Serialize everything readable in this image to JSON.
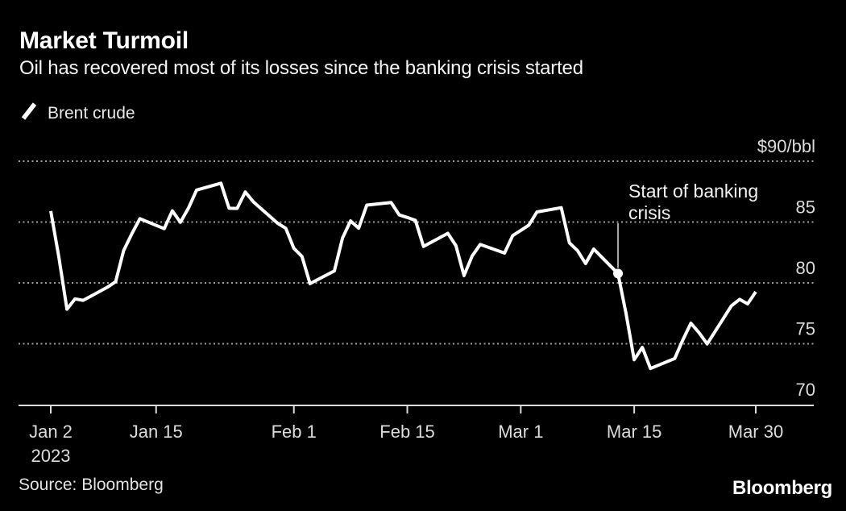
{
  "header": {
    "title": "Market Turmoil",
    "subtitle": "Oil has recovered most of its losses since the banking crisis started"
  },
  "legend": {
    "swatch_icon": "diagonal-line-sample-icon",
    "label": "Brent crude"
  },
  "footer": {
    "source": "Source: Bloomberg",
    "logo": "Bloomberg"
  },
  "colors": {
    "background": "#000000",
    "line": "#ffffff",
    "grid": "#9e9e9e",
    "axis": "#dcdcdc",
    "tick_label": "#dcdcdc",
    "annotation_text": "#f2f2f2",
    "annotation_line": "#cfcfcf",
    "marker": "#ffffff"
  },
  "chart_data": {
    "type": "line",
    "title": "Market Turmoil",
    "subtitle": "Oil has recovered most of its losses since the banking crisis started",
    "ylabel_unit": "$90/bbl",
    "y_domain": [
      70,
      90
    ],
    "grid": "horizontal-dotted",
    "legend_position": "top-left",
    "y_ticks": [
      {
        "label": "$90/bbl",
        "value": 90
      },
      {
        "label": "85",
        "value": 85
      },
      {
        "label": "80",
        "value": 80
      },
      {
        "label": "75",
        "value": 75
      },
      {
        "label": "70",
        "value": 70
      }
    ],
    "x_domain_days": [
      0,
      87
    ],
    "x_ticks": [
      {
        "label": "Jan 2",
        "sublabel": "2023",
        "day": 0
      },
      {
        "label": "Jan 15",
        "day": 13
      },
      {
        "label": "Feb 1",
        "day": 30
      },
      {
        "label": "Feb 15",
        "day": 44
      },
      {
        "label": "Mar 1",
        "day": 58
      },
      {
        "label": "Mar 15",
        "day": 72
      },
      {
        "label": "Mar 30",
        "day": 87
      }
    ],
    "points_format": [
      "date",
      "day_offset",
      "price_usd_per_bbl"
    ],
    "series": [
      {
        "name": "Brent crude",
        "points": [
          [
            "Jan 2",
            0,
            85.91
          ],
          [
            "Jan 3",
            1,
            82.1
          ],
          [
            "Jan 4",
            2,
            77.84
          ],
          [
            "Jan 5",
            3,
            78.69
          ],
          [
            "Jan 6",
            4,
            78.57
          ],
          [
            "Jan 9",
            7,
            79.65
          ],
          [
            "Jan 10",
            8,
            80.1
          ],
          [
            "Jan 11",
            9,
            82.67
          ],
          [
            "Jan 12",
            10,
            84.03
          ],
          [
            "Jan 13",
            11,
            85.28
          ],
          [
            "Jan 16",
            14,
            84.46
          ],
          [
            "Jan 17",
            15,
            85.92
          ],
          [
            "Jan 18",
            16,
            84.98
          ],
          [
            "Jan 19",
            17,
            86.16
          ],
          [
            "Jan 20",
            18,
            87.63
          ],
          [
            "Jan 23",
            21,
            88.19
          ],
          [
            "Jan 24",
            22,
            86.13
          ],
          [
            "Jan 25",
            23,
            86.12
          ],
          [
            "Jan 26",
            24,
            87.47
          ],
          [
            "Jan 27",
            25,
            86.66
          ],
          [
            "Jan 30",
            28,
            84.9
          ],
          [
            "Jan 31",
            29,
            84.49
          ],
          [
            "Feb 1",
            30,
            82.84
          ],
          [
            "Feb 2",
            31,
            82.17
          ],
          [
            "Feb 3",
            32,
            79.94
          ],
          [
            "Feb 6",
            35,
            80.99
          ],
          [
            "Feb 7",
            36,
            83.69
          ],
          [
            "Feb 8",
            37,
            85.09
          ],
          [
            "Feb 9",
            38,
            84.5
          ],
          [
            "Feb 10",
            39,
            86.39
          ],
          [
            "Feb 13",
            42,
            86.61
          ],
          [
            "Feb 14",
            43,
            85.58
          ],
          [
            "Feb 15",
            44,
            85.38
          ],
          [
            "Feb 16",
            45,
            85.14
          ],
          [
            "Feb 17",
            46,
            83.0
          ],
          [
            "Feb 20",
            49,
            84.07
          ],
          [
            "Feb 21",
            50,
            83.05
          ],
          [
            "Feb 22",
            51,
            80.6
          ],
          [
            "Feb 23",
            52,
            82.21
          ],
          [
            "Feb 24",
            53,
            83.16
          ],
          [
            "Feb 27",
            56,
            82.45
          ],
          [
            "Feb 28",
            57,
            83.89
          ],
          [
            "Mar 1",
            58,
            84.31
          ],
          [
            "Mar 2",
            59,
            84.75
          ],
          [
            "Mar 3",
            60,
            85.83
          ],
          [
            "Mar 6",
            63,
            86.18
          ],
          [
            "Mar 7",
            64,
            83.29
          ],
          [
            "Mar 8",
            65,
            82.66
          ],
          [
            "Mar 9",
            66,
            81.59
          ],
          [
            "Mar 10",
            67,
            82.78
          ],
          [
            "Mar 13",
            70,
            80.77
          ],
          [
            "Mar 14",
            71,
            77.45
          ],
          [
            "Mar 15",
            72,
            73.69
          ],
          [
            "Mar 16",
            73,
            74.7
          ],
          [
            "Mar 17",
            74,
            72.97
          ],
          [
            "Mar 20",
            77,
            73.79
          ],
          [
            "Mar 21",
            78,
            75.32
          ],
          [
            "Mar 22",
            79,
            76.69
          ],
          [
            "Mar 23",
            80,
            75.91
          ],
          [
            "Mar 24",
            81,
            74.99
          ],
          [
            "Mar 27",
            84,
            78.12
          ],
          [
            "Mar 28",
            85,
            78.65
          ],
          [
            "Mar 29",
            86,
            78.28
          ],
          [
            "Mar 30",
            87,
            79.27
          ]
        ]
      }
    ],
    "annotation": {
      "text": "Start of banking crisis",
      "lines": [
        "Start of banking",
        "crisis"
      ],
      "point": {
        "date": "Mar 13",
        "day": 70,
        "value": 80.77
      }
    }
  }
}
